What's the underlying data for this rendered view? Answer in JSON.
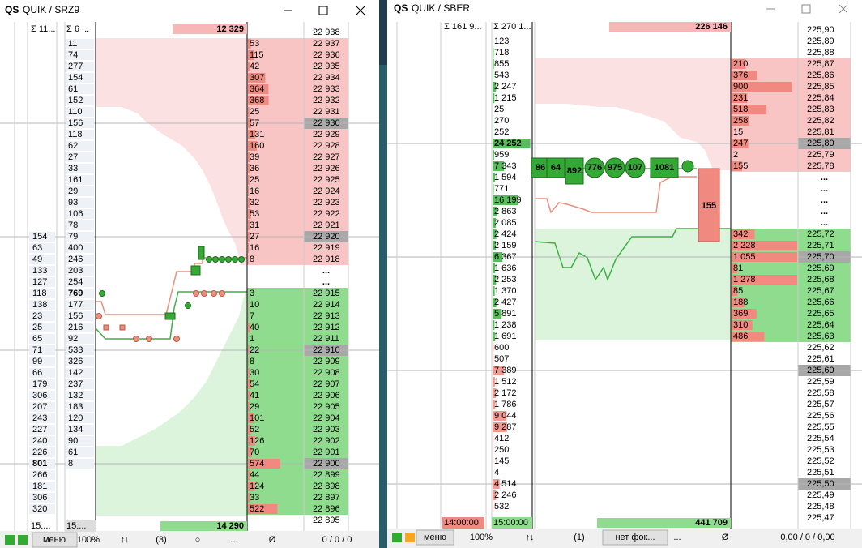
{
  "left": {
    "logo": "QS",
    "title": "QUIK / SRZ9",
    "header": [
      "Σ 11...",
      "Σ 6 ...",
      "12 329",
      "22 938"
    ],
    "rows": [
      [
        null,
        "11",
        "53",
        "22 937"
      ],
      [
        null,
        "74",
        "115",
        "22 936"
      ],
      [
        null,
        "277",
        "42",
        "22 935"
      ],
      [
        null,
        "154",
        "307",
        "22 934"
      ],
      [
        null,
        "61",
        "364",
        "22 933"
      ],
      [
        null,
        "152",
        "368",
        "22 932"
      ],
      [
        null,
        "110",
        "25",
        "22 931"
      ],
      [
        null,
        "156",
        "57",
        "22 930"
      ],
      [
        null,
        "118",
        "131",
        "22 929"
      ],
      [
        null,
        "62",
        "160",
        "22 928"
      ],
      [
        null,
        "27",
        "39",
        "22 927"
      ],
      [
        null,
        "33",
        "36",
        "22 926"
      ],
      [
        null,
        "161",
        "25",
        "22 925"
      ],
      [
        null,
        "29",
        "16",
        "22 924"
      ],
      [
        null,
        "93",
        "32",
        "22 923"
      ],
      [
        null,
        "106",
        "53",
        "22 922"
      ],
      [
        null,
        "78",
        "31",
        "22 921"
      ],
      [
        "154",
        "79",
        "27",
        "22 920"
      ],
      [
        "63",
        "400",
        "16",
        "22 919"
      ],
      [
        "49",
        "246",
        "8",
        "22 918"
      ],
      [
        "133",
        "203",
        null,
        "..."
      ],
      [
        "127",
        "254",
        null,
        "..."
      ],
      [
        "118",
        "769",
        "3",
        "22 915"
      ],
      [
        "138",
        "177",
        "10",
        "22 914"
      ],
      [
        "23",
        "156",
        "7",
        "22 913"
      ],
      [
        "25",
        "216",
        "40",
        "22 912"
      ],
      [
        "65",
        "92",
        "1",
        "22 911"
      ],
      [
        "71",
        "533",
        "22",
        "22 910"
      ],
      [
        "99",
        "326",
        "8",
        "22 909"
      ],
      [
        "66",
        "142",
        "30",
        "22 908"
      ],
      [
        "179",
        "237",
        "54",
        "22 907"
      ],
      [
        "306",
        "132",
        "41",
        "22 906"
      ],
      [
        "207",
        "183",
        "29",
        "22 905"
      ],
      [
        "243",
        "120",
        "101",
        "22 904"
      ],
      [
        "227",
        "134",
        "52",
        "22 903"
      ],
      [
        "240",
        "90",
        "126",
        "22 902"
      ],
      [
        "226",
        "61",
        "70",
        "22 901"
      ],
      [
        "801",
        "8",
        "574",
        "22 900"
      ],
      [
        "266",
        null,
        "44",
        "22 899"
      ],
      [
        "181",
        null,
        "124",
        "22 898"
      ],
      [
        "306",
        null,
        "33",
        "22 897"
      ],
      [
        "320",
        null,
        "522",
        "22 896"
      ],
      [
        null,
        null,
        null,
        "22 895"
      ]
    ],
    "footer": [
      "15:...",
      "15:...",
      "14 290"
    ],
    "status": [
      "меню",
      "100%",
      "↑↓",
      "(3)",
      "○",
      "...",
      "Ø",
      "0 / 0 / 0"
    ]
  },
  "right": {
    "logo": "QS",
    "title": "QUIK / SBER",
    "header": [
      "Σ 161 9...",
      "Σ 270 1...",
      "226 146",
      "225,90"
    ],
    "rows": [
      [
        "123",
        null,
        "225,89"
      ],
      [
        "718",
        null,
        "225,88"
      ],
      [
        "855",
        "210",
        "225,87"
      ],
      [
        "543",
        "376",
        "225,86"
      ],
      [
        "2 247",
        "900",
        "225,85"
      ],
      [
        "1 215",
        "231",
        "225,84"
      ],
      [
        "25",
        "518",
        "225,83"
      ],
      [
        "270",
        "258",
        "225,82"
      ],
      [
        "252",
        "15",
        "225,81"
      ],
      [
        "24 252",
        "247",
        "225,80"
      ],
      [
        "959",
        "2",
        "225,79"
      ],
      [
        "7 343",
        "155",
        "225,78"
      ],
      [
        "1 594",
        null,
        "..."
      ],
      [
        "771",
        null,
        "..."
      ],
      [
        "16 199",
        null,
        "..."
      ],
      [
        "2 863",
        null,
        "..."
      ],
      [
        "2 085",
        null,
        "..."
      ],
      [
        "2 424",
        "342",
        "225,72"
      ],
      [
        "2 159",
        "2 228",
        "225,71"
      ],
      [
        "6 367",
        "1 055",
        "225,70"
      ],
      [
        "1 636",
        "81",
        "225,69"
      ],
      [
        "2 253",
        "1 278",
        "225,68"
      ],
      [
        "1 370",
        "85",
        "225,67"
      ],
      [
        "2 427",
        "188",
        "225,66"
      ],
      [
        "5 891",
        "369",
        "225,65"
      ],
      [
        "1 238",
        "310",
        "225,64"
      ],
      [
        "1 691",
        "486",
        "225,63"
      ],
      [
        "600",
        null,
        "225,62"
      ],
      [
        "507",
        null,
        "225,61"
      ],
      [
        "7 389",
        null,
        "225,60"
      ],
      [
        "1 512",
        null,
        "225,59"
      ],
      [
        "2 172",
        null,
        "225,58"
      ],
      [
        "1 786",
        null,
        "225,57"
      ],
      [
        "9 044",
        null,
        "225,56"
      ],
      [
        "9 287",
        null,
        "225,55"
      ],
      [
        "412",
        null,
        "225,54"
      ],
      [
        "250",
        null,
        "225,53"
      ],
      [
        "145",
        null,
        "225,52"
      ],
      [
        "4",
        null,
        "225,51"
      ],
      [
        "4 514",
        null,
        "225,50"
      ],
      [
        "2 246",
        null,
        "225,49"
      ],
      [
        "532",
        null,
        "225,48"
      ],
      [
        null,
        null,
        "225,47"
      ]
    ],
    "footer": [
      "14:00:00",
      "15:00:00",
      "441 709"
    ],
    "bubbles": [
      "86",
      "64",
      "892",
      "776",
      "975",
      "107",
      "1081"
    ],
    "block": "155",
    "status": [
      "меню",
      "100%",
      "↑↓",
      "(1)",
      "нет фок...",
      "...",
      "Ø",
      "0,00 / 0 / 0,00"
    ]
  }
}
